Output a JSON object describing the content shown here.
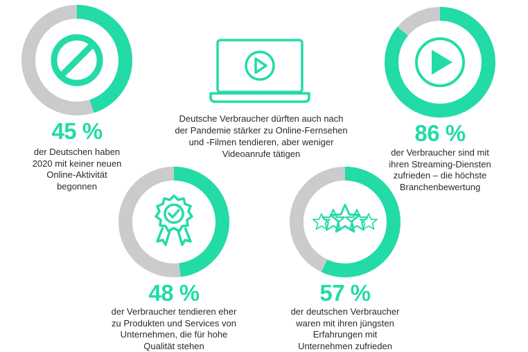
{
  "colors": {
    "accent": "#22dba7",
    "track": "#c9cbcd"
  },
  "center": {
    "icon": "laptop-play-icon",
    "lines": [
      "Deutsche Verbraucher dürften auch nach",
      "der Pandemie stärker zu Online-Fernsehen",
      "und -Filmen tendieren, aber weniger",
      "Videoanrufe tätigen"
    ]
  },
  "stats": [
    {
      "icon": "prohibited-icon",
      "value": 45,
      "percent_label": "45 %",
      "lines": [
        "der Deutschen haben",
        "2020 mit keiner neuen",
        "Online-Aktivität",
        "begonnen"
      ]
    },
    {
      "icon": "play-circle-icon",
      "value": 86,
      "percent_label": "86 %",
      "lines": [
        "der Verbraucher sind mit",
        "ihren Streaming-Diensten",
        "zufrieden – die höchste",
        "Branchenbewertung"
      ]
    },
    {
      "icon": "quality-badge-icon",
      "value": 48,
      "percent_label": "48 %",
      "lines": [
        "der Verbraucher tendieren eher",
        "zu Produkten und Services von",
        "Unternehmen, die für hohe",
        "Qualität stehen"
      ]
    },
    {
      "icon": "stars-rating-icon",
      "value": 57,
      "percent_label": "57 %",
      "lines": [
        "der deutschen Verbraucher",
        "waren mit ihren jüngsten",
        "Erfahrungen mit",
        "Unternehmen zufrieden"
      ]
    }
  ]
}
